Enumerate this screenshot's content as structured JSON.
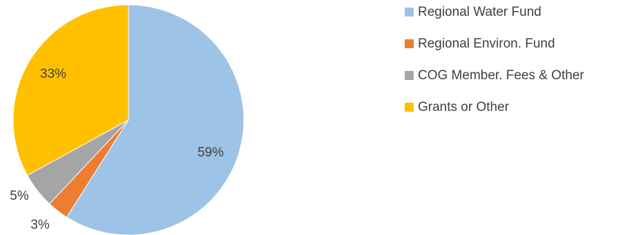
{
  "chart_data": {
    "type": "pie",
    "title": "",
    "start_angle_deg": 0,
    "direction": "clockwise",
    "legend_position": "right",
    "slices": [
      {
        "name": "Regional Water Fund",
        "value": 59,
        "label": "59%",
        "color": "#9DC3E6"
      },
      {
        "name": "Regional Environ. Fund",
        "value": 3,
        "label": "3%",
        "color": "#ED7D31"
      },
      {
        "name": "COG Member. Fees & Other",
        "value": 5,
        "label": "5%",
        "color": "#A5A5A5"
      },
      {
        "name": "Grants or Other",
        "value": 33,
        "label": "33%",
        "color": "#FFC000"
      }
    ]
  }
}
